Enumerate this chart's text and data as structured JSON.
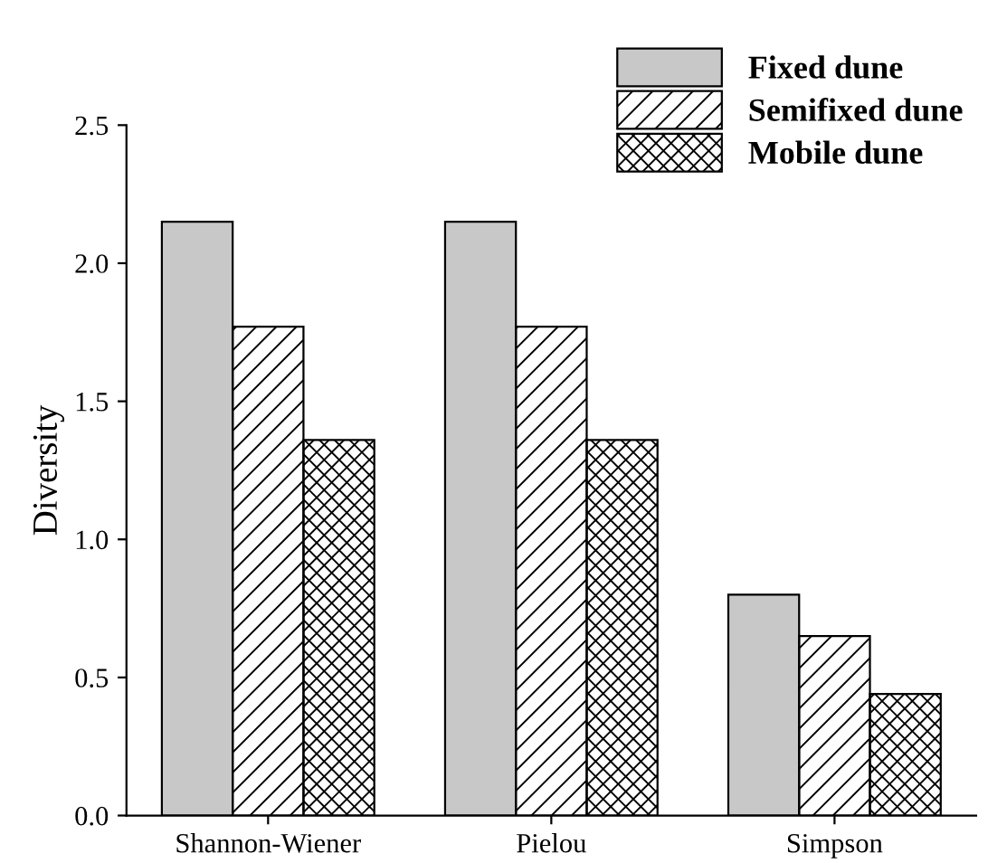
{
  "chart_data": {
    "type": "bar",
    "ylabel": "Diversity",
    "categories": [
      "Shannon-Wiener",
      "Pielou",
      "Simpson"
    ],
    "series": [
      {
        "name": "Fixed dune",
        "color": "#c8c8c8",
        "values": [
          2.15,
          2.15,
          0.8
        ]
      },
      {
        "name": "Semifixed dune",
        "color": "#000000",
        "values": [
          1.77,
          1.77,
          0.65
        ]
      },
      {
        "name": "Mobile dune",
        "color": "#000000",
        "values": [
          1.36,
          1.36,
          0.44
        ]
      }
    ],
    "ylim": [
      0,
      2.5
    ],
    "yticks": [
      {
        "value": 0,
        "label": "0.0"
      },
      {
        "value": 0.5,
        "label": "0.5"
      },
      {
        "value": 1,
        "label": "1.0"
      },
      {
        "value": 1.5,
        "label": "1.5"
      },
      {
        "value": 2,
        "label": "2.0"
      },
      {
        "value": 2.5,
        "label": "2.5"
      }
    ],
    "grid": false,
    "legend": "top right"
  }
}
